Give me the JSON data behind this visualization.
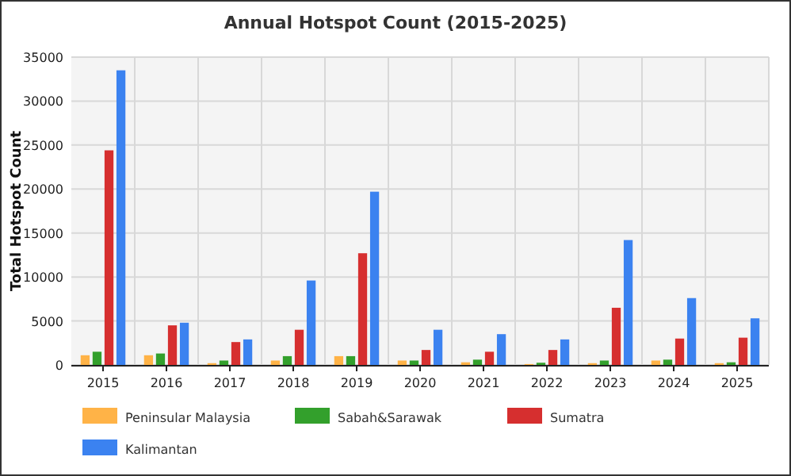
{
  "chart_data": {
    "type": "bar",
    "title": "Annual Hotspot Count (2015-2025)",
    "ylabel": "Total Hotspot Count",
    "categories": [
      "2015",
      "2016",
      "2017",
      "2018",
      "2019",
      "2020",
      "2021",
      "2022",
      "2023",
      "2024",
      "2025"
    ],
    "series": [
      {
        "name": "Peninsular Malaysia",
        "color": "#ffb347",
        "values": [
          1100,
          1100,
          200,
          500,
          1000,
          500,
          300,
          100,
          200,
          500,
          200
        ]
      },
      {
        "name": "Sabah&Sarawak",
        "color": "#33a02c",
        "values": [
          1500,
          1300,
          500,
          1000,
          1000,
          500,
          600,
          250,
          500,
          600,
          300
        ]
      },
      {
        "name": "Sumatra",
        "color": "#d62f2f",
        "values": [
          24400,
          4500,
          2600,
          4000,
          12700,
          1700,
          1500,
          1700,
          6500,
          3000,
          3100
        ]
      },
      {
        "name": "Kalimantan",
        "color": "#3b82f0",
        "values": [
          33500,
          4800,
          2900,
          9600,
          19700,
          4000,
          3500,
          2900,
          14200,
          7600,
          5300
        ]
      }
    ],
    "ylim": [
      0,
      35000
    ],
    "yticks": [
      0,
      5000,
      10000,
      15000,
      20000,
      25000,
      30000,
      35000
    ],
    "grid": true,
    "legend": "bottom"
  }
}
